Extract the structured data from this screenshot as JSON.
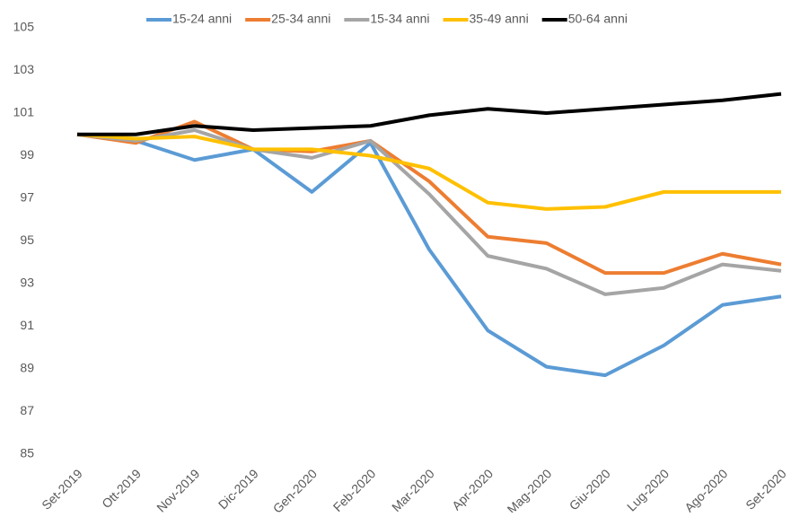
{
  "chart_data": {
    "type": "line",
    "categories": [
      "Set-2019",
      "Ott-2019",
      "Nov-2019",
      "Dic-2019",
      "Gen-2020",
      "Feb-2020",
      "Mar-2020",
      "Apr-2020",
      "Mag-2020",
      "Giu-2020",
      "Lug-2020",
      "Ago-2020",
      "Set-2020"
    ],
    "series": [
      {
        "name": "15-24 anni",
        "color": "#5b9bd5",
        "values": [
          100,
          99.7,
          98.8,
          99.3,
          97.3,
          99.6,
          94.6,
          90.8,
          89.1,
          88.7,
          90.1,
          92.0,
          92.4
        ]
      },
      {
        "name": "25-34 anni",
        "color": "#ed7d31",
        "values": [
          100,
          99.6,
          100.6,
          99.3,
          99.2,
          99.7,
          97.8,
          95.2,
          94.9,
          93.5,
          93.5,
          94.4,
          93.9
        ]
      },
      {
        "name": "15-34 anni",
        "color": "#a5a5a5",
        "values": [
          100,
          99.7,
          100.2,
          99.3,
          98.9,
          99.7,
          97.2,
          94.3,
          93.7,
          92.5,
          92.8,
          93.9,
          93.6
        ]
      },
      {
        "name": "35-49 anni",
        "color": "#ffc000",
        "values": [
          100,
          99.8,
          99.9,
          99.3,
          99.3,
          99.0,
          98.4,
          96.8,
          96.5,
          96.6,
          97.3,
          97.3,
          97.3
        ]
      },
      {
        "name": "50-64 anni",
        "color": "#000000",
        "values": [
          100,
          100.0,
          100.4,
          100.2,
          100.3,
          100.4,
          100.9,
          101.2,
          101.0,
          101.2,
          101.4,
          101.6,
          101.9
        ]
      }
    ],
    "ylim": [
      85,
      105
    ],
    "yticks": [
      85,
      87,
      89,
      91,
      93,
      95,
      97,
      99,
      101,
      103,
      105
    ],
    "grid": false,
    "legend": "top"
  }
}
